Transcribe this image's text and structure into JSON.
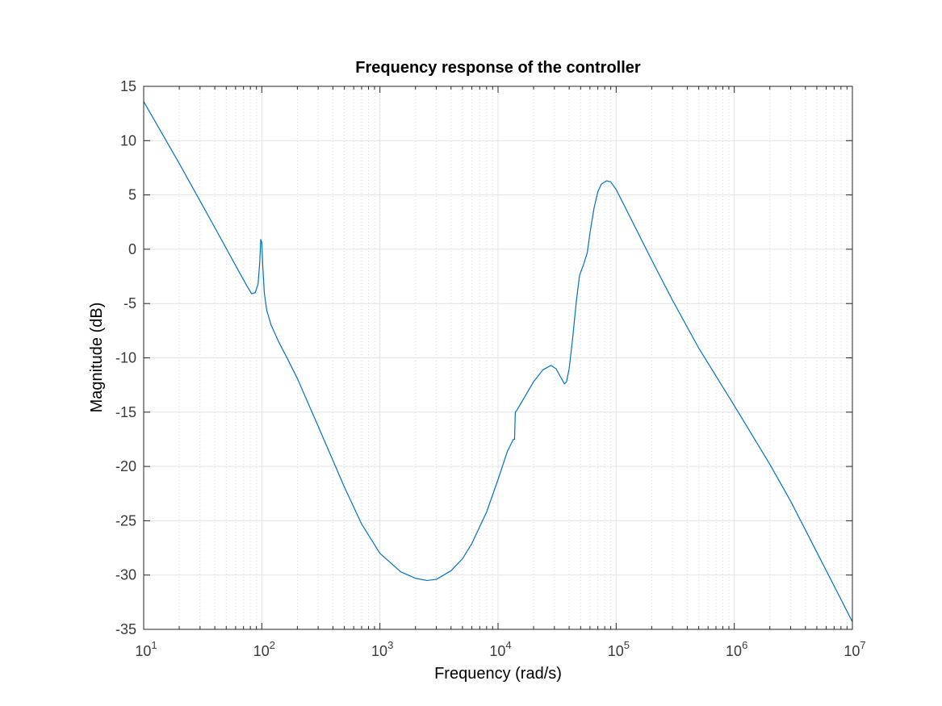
{
  "chart_data": {
    "type": "line",
    "title": "Frequency response of the controller",
    "xlabel": "Frequency  (rad/s)",
    "ylabel": "Magnitude (dB)",
    "xscale": "log",
    "xlim": [
      10,
      10000000
    ],
    "ylim": [
      -35,
      15
    ],
    "xticks": [
      {
        "base": "10",
        "exp": "1"
      },
      {
        "base": "10",
        "exp": "2"
      },
      {
        "base": "10",
        "exp": "3"
      },
      {
        "base": "10",
        "exp": "4"
      },
      {
        "base": "10",
        "exp": "5"
      },
      {
        "base": "10",
        "exp": "6"
      },
      {
        "base": "10",
        "exp": "7"
      }
    ],
    "yticks": [
      "15",
      "10",
      "5",
      "0",
      "-5",
      "-10",
      "-15",
      "-20",
      "-25",
      "-30",
      "-35"
    ],
    "grid": true,
    "minor_grid": true,
    "line_color": "#0072bd",
    "series": [
      {
        "values": [
          [
            10,
            13.6
          ],
          [
            20,
            7.9
          ],
          [
            40,
            2.0
          ],
          [
            60,
            -1.5
          ],
          [
            75,
            -3.4
          ],
          [
            82,
            -4.1
          ],
          [
            88,
            -4.0
          ],
          [
            93,
            -3.2
          ],
          [
            96,
            -1.2
          ],
          [
            98,
            0.9
          ],
          [
            100,
            0.6
          ],
          [
            102,
            -1.6
          ],
          [
            105,
            -4.0
          ],
          [
            110,
            -5.6
          ],
          [
            120,
            -7.0
          ],
          [
            140,
            -8.6
          ],
          [
            160,
            -9.8
          ],
          [
            200,
            -11.9
          ],
          [
            300,
            -16.3
          ],
          [
            500,
            -21.9
          ],
          [
            700,
            -25.3
          ],
          [
            1000,
            -28.0
          ],
          [
            1500,
            -29.7
          ],
          [
            2000,
            -30.3
          ],
          [
            2500,
            -30.5
          ],
          [
            3000,
            -30.4
          ],
          [
            4000,
            -29.6
          ],
          [
            5000,
            -28.5
          ],
          [
            6000,
            -27.1
          ],
          [
            8000,
            -24.2
          ],
          [
            10000,
            -21.2
          ],
          [
            12000,
            -18.6
          ],
          [
            13500,
            -17.5
          ],
          [
            13800,
            -17.5
          ],
          [
            14000,
            -15.0
          ],
          [
            14500,
            -14.8
          ],
          [
            16000,
            -14.0
          ],
          [
            20000,
            -12.2
          ],
          [
            24000,
            -11.1
          ],
          [
            28000,
            -10.7
          ],
          [
            31000,
            -11.0
          ],
          [
            34000,
            -11.8
          ],
          [
            36500,
            -12.4
          ],
          [
            38000,
            -12.2
          ],
          [
            40000,
            -11.0
          ],
          [
            43000,
            -8.0
          ],
          [
            46000,
            -4.8
          ],
          [
            49000,
            -2.4
          ],
          [
            53000,
            -1.4
          ],
          [
            57000,
            -0.3
          ],
          [
            60000,
            1.5
          ],
          [
            65000,
            3.8
          ],
          [
            70000,
            5.3
          ],
          [
            75000,
            6.0
          ],
          [
            83000,
            6.3
          ],
          [
            90000,
            6.2
          ],
          [
            100000,
            5.5
          ],
          [
            120000,
            3.8
          ],
          [
            150000,
            1.7
          ],
          [
            200000,
            -1.0
          ],
          [
            300000,
            -4.7
          ],
          [
            500000,
            -9.1
          ],
          [
            1000000,
            -14.4
          ],
          [
            2000000,
            -19.8
          ],
          [
            3000000,
            -23.2
          ],
          [
            5000000,
            -27.9
          ],
          [
            10000000,
            -34.3
          ]
        ]
      }
    ]
  }
}
